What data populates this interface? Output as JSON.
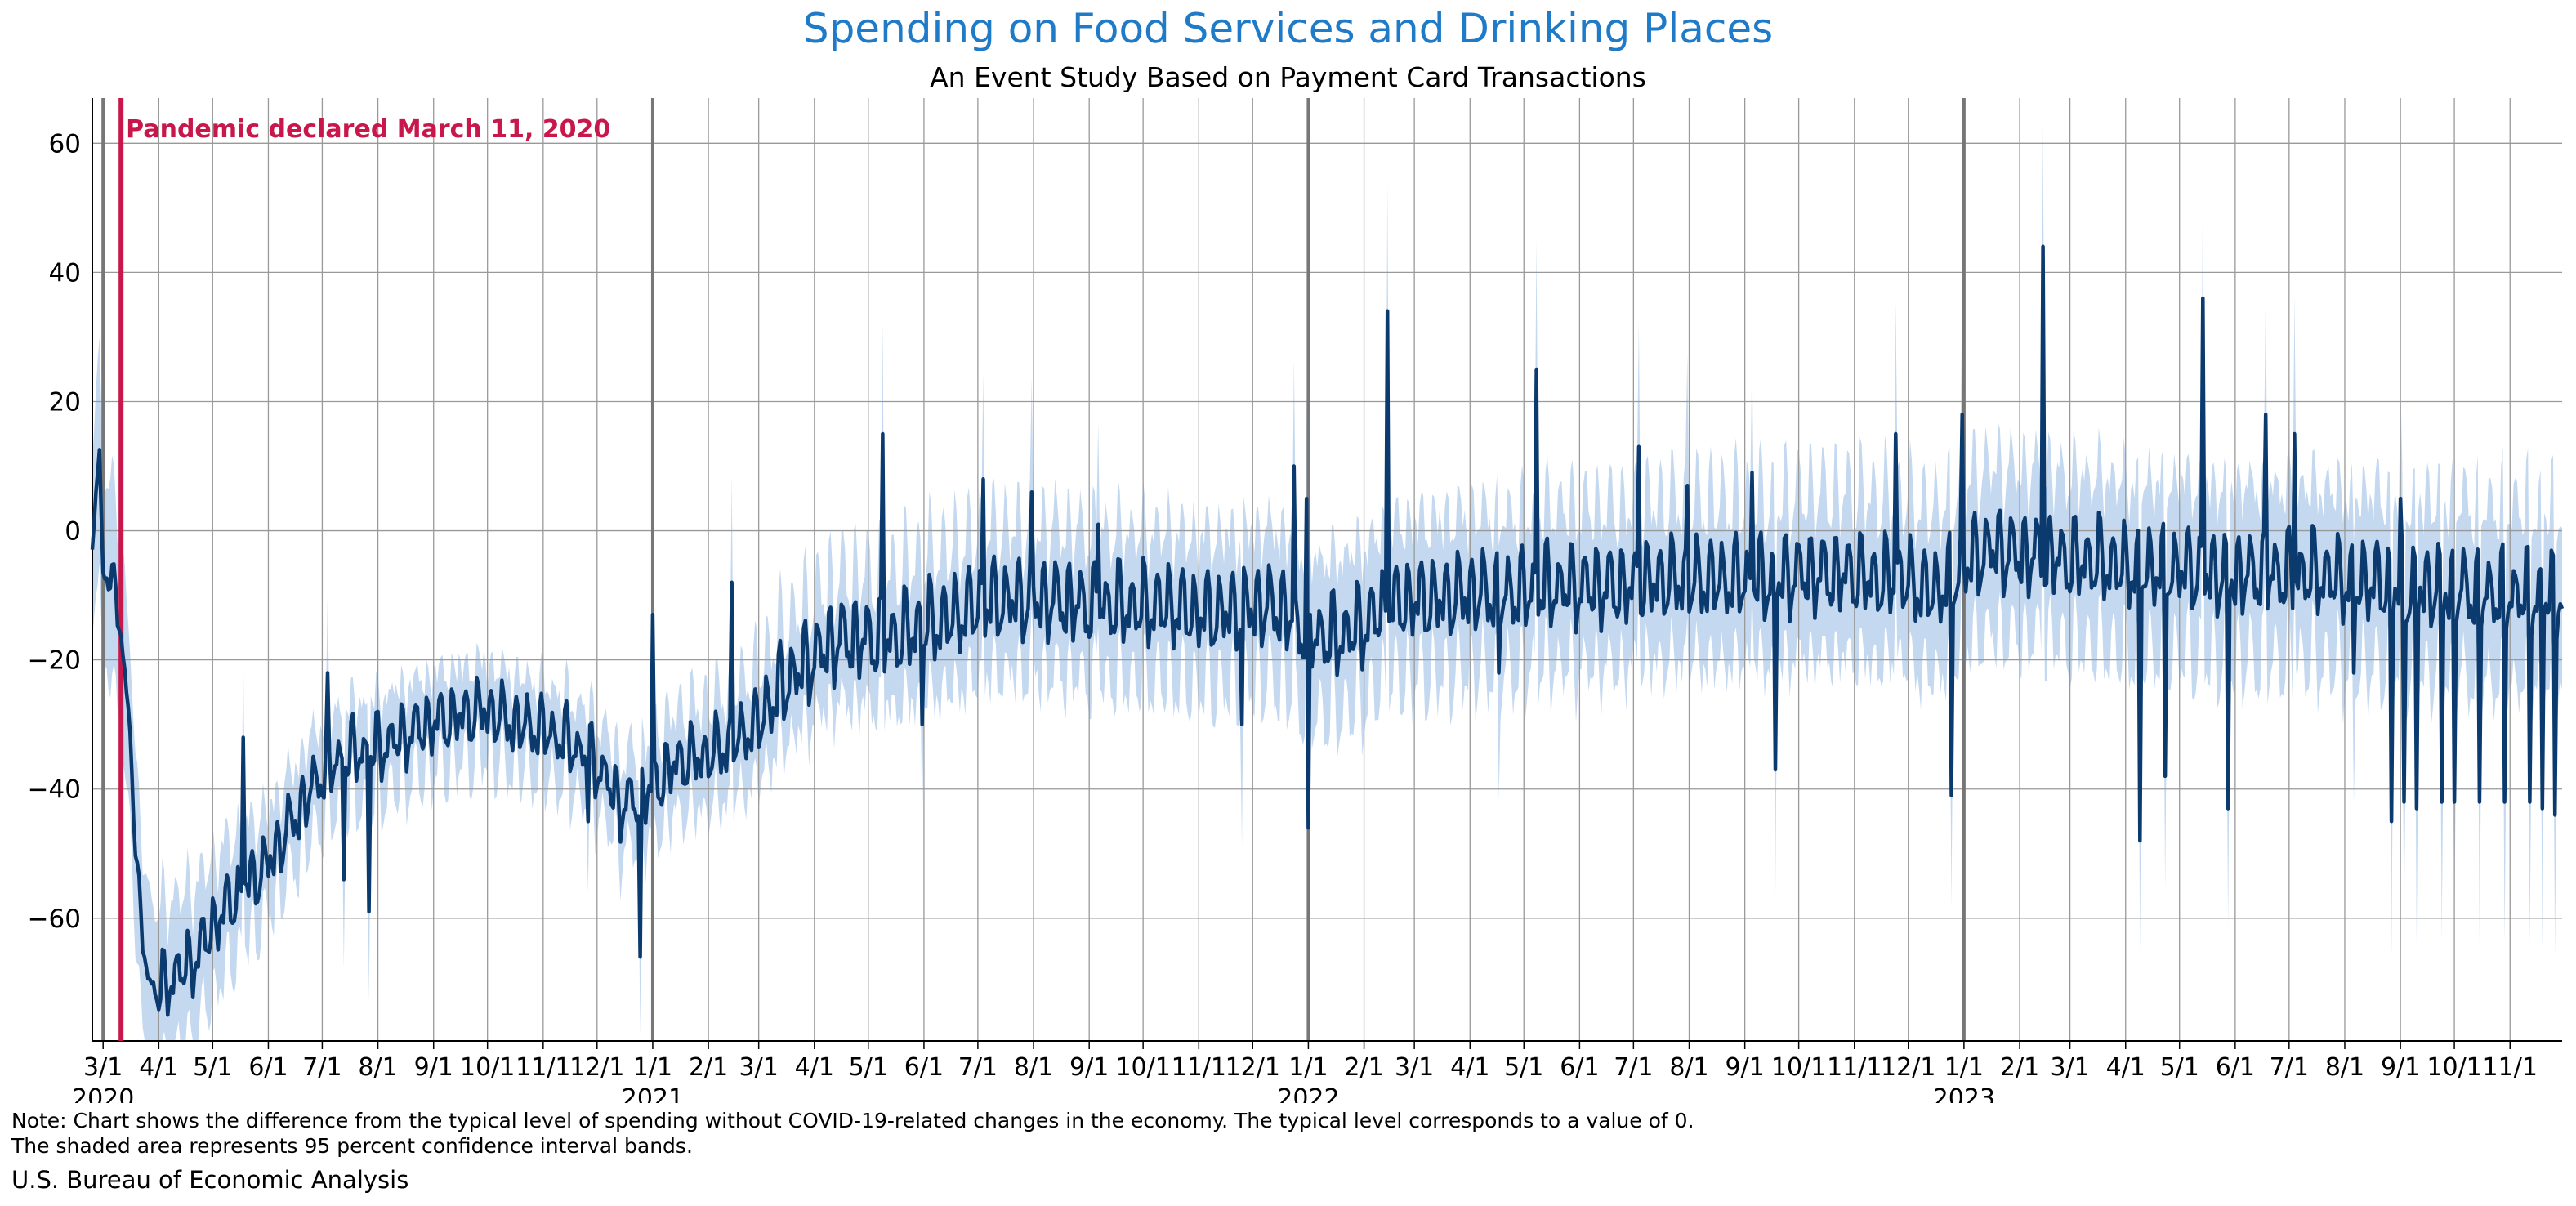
{
  "chart_data": {
    "type": "line",
    "title": "Spending on Food Services and Drinking Places",
    "subtitle": "An Event Study Based on Payment Card Transactions",
    "xlabel": "",
    "ylabel": "",
    "ylim": [
      -79,
      67
    ],
    "xlim": [
      "2020-02-24",
      "2023-11-30"
    ],
    "yticks": [
      60,
      40,
      20,
      0,
      -20,
      -40,
      -60
    ],
    "ytick_labels": [
      "60",
      "40",
      "20",
      "0",
      "−20",
      "−40",
      "−60"
    ],
    "grid": true,
    "xticks": [
      {
        "date": "2020-03-01",
        "label": "3/1",
        "year": "2020"
      },
      {
        "date": "2020-04-01",
        "label": "4/1"
      },
      {
        "date": "2020-05-01",
        "label": "5/1"
      },
      {
        "date": "2020-06-01",
        "label": "6/1"
      },
      {
        "date": "2020-07-01",
        "label": "7/1"
      },
      {
        "date": "2020-08-01",
        "label": "8/1"
      },
      {
        "date": "2020-09-01",
        "label": "9/1"
      },
      {
        "date": "2020-10-01",
        "label": "10/1"
      },
      {
        "date": "2020-11-01",
        "label": "11/1"
      },
      {
        "date": "2020-12-01",
        "label": "12/1"
      },
      {
        "date": "2021-01-01",
        "label": "1/1",
        "year": "2021"
      },
      {
        "date": "2021-02-01",
        "label": "2/1"
      },
      {
        "date": "2021-03-01",
        "label": "3/1"
      },
      {
        "date": "2021-04-01",
        "label": "4/1"
      },
      {
        "date": "2021-05-01",
        "label": "5/1"
      },
      {
        "date": "2021-06-01",
        "label": "6/1"
      },
      {
        "date": "2021-07-01",
        "label": "7/1"
      },
      {
        "date": "2021-08-01",
        "label": "8/1"
      },
      {
        "date": "2021-09-01",
        "label": "9/1"
      },
      {
        "date": "2021-10-01",
        "label": "10/1"
      },
      {
        "date": "2021-11-01",
        "label": "11/1"
      },
      {
        "date": "2021-12-01",
        "label": "12/1"
      },
      {
        "date": "2022-01-01",
        "label": "1/1",
        "year": "2022"
      },
      {
        "date": "2022-02-01",
        "label": "2/1"
      },
      {
        "date": "2022-03-01",
        "label": "3/1"
      },
      {
        "date": "2022-04-01",
        "label": "4/1"
      },
      {
        "date": "2022-05-01",
        "label": "5/1"
      },
      {
        "date": "2022-06-01",
        "label": "6/1"
      },
      {
        "date": "2022-07-01",
        "label": "7/1"
      },
      {
        "date": "2022-08-01",
        "label": "8/1"
      },
      {
        "date": "2022-09-01",
        "label": "9/1"
      },
      {
        "date": "2022-10-01",
        "label": "10/1"
      },
      {
        "date": "2022-11-01",
        "label": "11/1"
      },
      {
        "date": "2022-12-01",
        "label": "12/1"
      },
      {
        "date": "2023-01-01",
        "label": "1/1",
        "year": "2023"
      },
      {
        "date": "2023-02-01",
        "label": "2/1"
      },
      {
        "date": "2023-03-01",
        "label": "3/1"
      },
      {
        "date": "2023-04-01",
        "label": "4/1"
      },
      {
        "date": "2023-05-01",
        "label": "5/1"
      },
      {
        "date": "2023-06-01",
        "label": "6/1"
      },
      {
        "date": "2023-07-01",
        "label": "7/1"
      },
      {
        "date": "2023-08-01",
        "label": "8/1"
      },
      {
        "date": "2023-09-01",
        "label": "9/1"
      },
      {
        "date": "2023-10-01",
        "label": "10/1"
      },
      {
        "date": "2023-11-01",
        "label": "11/1"
      }
    ],
    "event_line": {
      "date": "2020-03-11",
      "label": "Pandemic declared March 11, 2020",
      "color": "#c8174a"
    },
    "colors": {
      "line": "#0b3a6e",
      "band": "#c4d9f0",
      "grid": "#999999",
      "year_line": "#777777"
    },
    "series": [
      {
        "points": [
          [
            "2020-02-24",
            0
          ],
          [
            "2020-02-28",
            10
          ],
          [
            "2020-03-01",
            -7
          ],
          [
            "2020-03-05",
            -6
          ],
          [
            "2020-03-08",
            -10
          ],
          [
            "2020-03-12",
            -20
          ],
          [
            "2020-03-16",
            -30
          ],
          [
            "2020-03-20",
            -55
          ],
          [
            "2020-03-25",
            -68
          ],
          [
            "2020-03-31",
            -72
          ],
          [
            "2020-04-10",
            -69
          ],
          [
            "2020-04-20",
            -67
          ],
          [
            "2020-04-30",
            -62
          ],
          [
            "2020-05-10",
            -58
          ],
          [
            "2020-05-20",
            -55
          ],
          [
            "2020-05-31",
            -52
          ],
          [
            "2020-06-15",
            -45
          ],
          [
            "2020-06-30",
            -38
          ],
          [
            "2020-07-15",
            -35
          ],
          [
            "2020-07-31",
            -34
          ],
          [
            "2020-08-15",
            -32
          ],
          [
            "2020-08-31",
            -30
          ],
          [
            "2020-09-15",
            -29
          ],
          [
            "2020-09-30",
            -28
          ],
          [
            "2020-10-15",
            -30
          ],
          [
            "2020-10-31",
            -31
          ],
          [
            "2020-11-15",
            -33
          ],
          [
            "2020-11-30",
            -36
          ],
          [
            "2020-12-15",
            -43
          ],
          [
            "2020-12-31",
            -40
          ],
          [
            "2021-01-15",
            -36
          ],
          [
            "2021-01-31",
            -35
          ],
          [
            "2021-02-15",
            -33
          ],
          [
            "2021-02-28",
            -30
          ],
          [
            "2021-03-15",
            -24
          ],
          [
            "2021-03-31",
            -20
          ],
          [
            "2021-04-15",
            -17
          ],
          [
            "2021-04-30",
            -17
          ],
          [
            "2021-05-15",
            -17
          ],
          [
            "2021-05-31",
            -15
          ],
          [
            "2021-06-15",
            -14
          ],
          [
            "2021-06-30",
            -12
          ],
          [
            "2021-07-15",
            -11
          ],
          [
            "2021-07-31",
            -11
          ],
          [
            "2021-08-15",
            -11
          ],
          [
            "2021-08-31",
            -12
          ],
          [
            "2021-09-15",
            -12
          ],
          [
            "2021-09-30",
            -12
          ],
          [
            "2021-10-15",
            -12
          ],
          [
            "2021-10-31",
            -13
          ],
          [
            "2021-11-15",
            -13
          ],
          [
            "2021-11-30",
            -12
          ],
          [
            "2021-12-15",
            -12
          ],
          [
            "2021-12-31",
            -16
          ],
          [
            "2022-01-15",
            -17
          ],
          [
            "2022-01-31",
            -15
          ],
          [
            "2022-02-15",
            -12
          ],
          [
            "2022-02-28",
            -11
          ],
          [
            "2022-03-15",
            -11
          ],
          [
            "2022-03-31",
            -10
          ],
          [
            "2022-04-15",
            -10
          ],
          [
            "2022-04-30",
            -10
          ],
          [
            "2022-05-15",
            -9
          ],
          [
            "2022-05-31",
            -9
          ],
          [
            "2022-06-15",
            -9
          ],
          [
            "2022-06-30",
            -9
          ],
          [
            "2022-07-15",
            -8
          ],
          [
            "2022-07-31",
            -8
          ],
          [
            "2022-08-15",
            -8
          ],
          [
            "2022-08-31",
            -8
          ],
          [
            "2022-09-15",
            -8
          ],
          [
            "2022-09-30",
            -7
          ],
          [
            "2022-10-15",
            -7
          ],
          [
            "2022-10-31",
            -7
          ],
          [
            "2022-11-15",
            -8
          ],
          [
            "2022-11-30",
            -8
          ],
          [
            "2022-12-15",
            -10
          ],
          [
            "2022-12-31",
            -6
          ],
          [
            "2023-01-15",
            -3
          ],
          [
            "2023-01-31",
            -4
          ],
          [
            "2023-02-15",
            -4
          ],
          [
            "2023-02-28",
            -5
          ],
          [
            "2023-03-15",
            -5
          ],
          [
            "2023-03-31",
            -6
          ],
          [
            "2023-04-15",
            -6
          ],
          [
            "2023-04-30",
            -6
          ],
          [
            "2023-05-15",
            -7
          ],
          [
            "2023-05-31",
            -7
          ],
          [
            "2023-06-15",
            -7
          ],
          [
            "2023-06-30",
            -7
          ],
          [
            "2023-07-15",
            -7
          ],
          [
            "2023-07-31",
            -8
          ],
          [
            "2023-08-15",
            -8
          ],
          [
            "2023-08-31",
            -9
          ],
          [
            "2023-09-15",
            -9
          ],
          [
            "2023-09-30",
            -9
          ],
          [
            "2023-10-15",
            -10
          ],
          [
            "2023-10-31",
            -10
          ],
          [
            "2023-11-15",
            -10
          ],
          [
            "2023-11-30",
            -10
          ]
        ],
        "spikes": [
          [
            "2020-05-18",
            -32
          ],
          [
            "2020-07-04",
            -22
          ],
          [
            "2020-07-13",
            -54
          ],
          [
            "2020-07-27",
            -59
          ],
          [
            "2020-11-26",
            -45
          ],
          [
            "2020-12-25",
            -66
          ],
          [
            "2021-01-01",
            -13
          ],
          [
            "2021-02-14",
            -8
          ],
          [
            "2021-05-09",
            15
          ],
          [
            "2021-05-31",
            -30
          ],
          [
            "2021-07-04",
            8
          ],
          [
            "2021-07-31",
            6
          ],
          [
            "2021-09-06",
            1
          ],
          [
            "2021-11-25",
            -30
          ],
          [
            "2021-12-24",
            10
          ],
          [
            "2021-12-31",
            5
          ],
          [
            "2022-01-01",
            -46
          ],
          [
            "2022-02-14",
            34
          ],
          [
            "2022-04-17",
            -22
          ],
          [
            "2022-05-08",
            25
          ],
          [
            "2022-07-04",
            13
          ],
          [
            "2022-07-31",
            7
          ],
          [
            "2022-09-05",
            9
          ],
          [
            "2022-09-18",
            -37
          ],
          [
            "2022-11-24",
            15
          ],
          [
            "2022-12-25",
            -41
          ],
          [
            "2022-12-31",
            18
          ],
          [
            "2023-02-14",
            44
          ],
          [
            "2023-04-09",
            -48
          ],
          [
            "2023-04-23",
            -38
          ],
          [
            "2023-05-14",
            36
          ],
          [
            "2023-05-28",
            -43
          ],
          [
            "2023-06-18",
            18
          ],
          [
            "2023-07-04",
            15
          ],
          [
            "2023-08-06",
            -22
          ],
          [
            "2023-08-27",
            -45
          ],
          [
            "2023-09-01",
            5
          ],
          [
            "2023-09-03",
            -42
          ],
          [
            "2023-09-10",
            -43
          ],
          [
            "2023-09-24",
            -42
          ],
          [
            "2023-10-01",
            -42
          ],
          [
            "2023-10-15",
            -42
          ],
          [
            "2023-10-29",
            -42
          ],
          [
            "2023-11-12",
            -42
          ],
          [
            "2023-11-19",
            -43
          ],
          [
            "2023-11-26",
            -44
          ]
        ],
        "band_halfwidth": [
          [
            "2020-02-24",
            16
          ],
          [
            "2020-06-01",
            8
          ],
          [
            "2020-12-01",
            7
          ],
          [
            "2021-06-01",
            11
          ],
          [
            "2022-01-01",
            12
          ],
          [
            "2023-01-01",
            13
          ],
          [
            "2023-11-30",
            14
          ]
        ]
      }
    ]
  },
  "note_line1": "Note: Chart shows the difference from the typical level of spending without COVID-19-related changes in the economy. The typical level corresponds to a value of 0.",
  "note_line2": "The shaded area represents 95 percent confidence interval bands.",
  "source": "U.S. Bureau of Economic Analysis"
}
